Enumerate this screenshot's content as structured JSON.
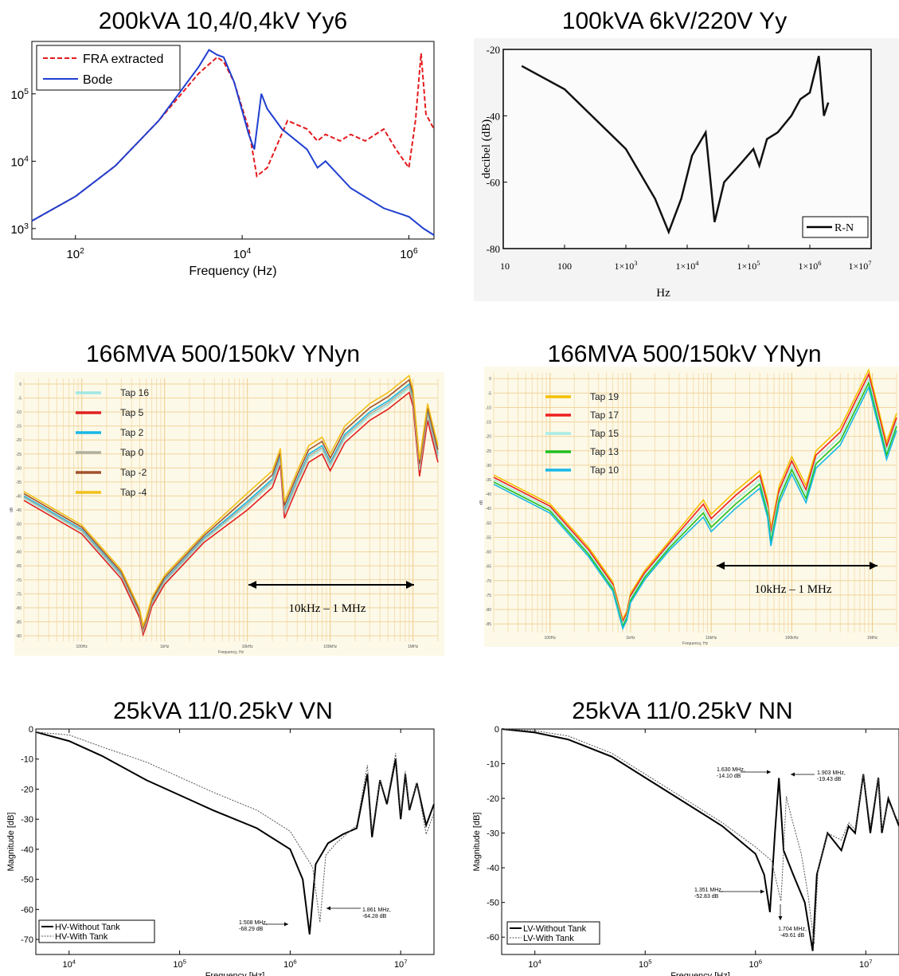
{
  "chart_data": [
    {
      "type": "line",
      "title": "200kVA 10,4/0,4kV Yy6",
      "xlabel": "Frequency (Hz)",
      "ylabel": "",
      "xscale": "log",
      "yscale": "log",
      "xlim": [
        30,
        2000000
      ],
      "ylim": [
        700,
        600000
      ],
      "xticks": [
        "10^2",
        "10^4",
        "10^6"
      ],
      "yticks": [
        "10^3",
        "10^4",
        "10^5"
      ],
      "legend": "top-left",
      "series": [
        {
          "name": "FRA extracted",
          "color": "#e41a1c",
          "style": "dashed",
          "x": [
            30,
            100,
            300,
            1000,
            3000,
            5000,
            6000,
            8000,
            12000,
            15000,
            20000,
            35000,
            60000,
            80000,
            100000,
            150000,
            200000,
            300000,
            500000,
            700000,
            1000000,
            1200000,
            1400000,
            1600000,
            2000000
          ],
          "y": [
            1300,
            3000,
            8500,
            40000,
            200000,
            350000,
            300000,
            150000,
            30000,
            6000,
            8000,
            40000,
            30000,
            20000,
            25000,
            20000,
            25000,
            20000,
            30000,
            15000,
            8000,
            40000,
            400000,
            50000,
            30000
          ]
        },
        {
          "name": "Bode",
          "color": "#1f3fd0",
          "style": "solid",
          "x": [
            30,
            100,
            300,
            1000,
            3000,
            4000,
            5000,
            6000,
            8000,
            12000,
            14000,
            17000,
            20000,
            30000,
            60000,
            80000,
            100000,
            200000,
            500000,
            1000000,
            1500000,
            2000000
          ],
          "y": [
            1300,
            3000,
            8500,
            40000,
            250000,
            450000,
            380000,
            350000,
            150000,
            25000,
            15000,
            100000,
            60000,
            30000,
            15000,
            8000,
            10000,
            4000,
            2000,
            1500,
            1000,
            800
          ]
        }
      ]
    },
    {
      "type": "line",
      "title": "100kVA 6kV/220V Yy",
      "xlabel": "Hz",
      "ylabel": "decibel (dB)",
      "xscale": "log",
      "xlim": [
        10,
        10000000
      ],
      "ylim": [
        -80,
        -20
      ],
      "xticks": [
        "10",
        "100",
        "1×10³",
        "1×10⁴",
        "1×10⁵",
        "1×10⁶",
        "1×10⁷"
      ],
      "yticks": [
        "-20",
        "-40",
        "-60",
        "-80"
      ],
      "legend": "bottom-right",
      "series": [
        {
          "name": "R-N",
          "color": "#111111",
          "x": [
            20,
            100,
            1000,
            3000,
            5000,
            8000,
            12000,
            20000,
            28000,
            40000,
            70000,
            120000,
            150000,
            200000,
            300000,
            500000,
            700000,
            1000000,
            1400000,
            1700000,
            2000000
          ],
          "y": [
            -25,
            -32,
            -50,
            -65,
            -75,
            -65,
            -52,
            -45,
            -72,
            -60,
            -55,
            -50,
            -55,
            -47,
            -45,
            -40,
            -35,
            -33,
            -22,
            -40,
            -36
          ]
        }
      ]
    },
    {
      "type": "line",
      "title": "166MVA 500/150kV YNyn",
      "annotation": "10kHz – 1 MHz",
      "xscale": "log",
      "ylabel": "dB",
      "xlabel": "Frequency, Hz",
      "xticks": [
        "100Hz",
        "1kHz",
        "10kHz",
        "100kHz",
        "1MHz"
      ],
      "yticks": [
        "0",
        "-5",
        "-10",
        "-15",
        "-20",
        "-25",
        "-30",
        "-35",
        "-40",
        "-45",
        "-50",
        "-55",
        "-60",
        "-65",
        "-70",
        "-75",
        "-80",
        "-85",
        "-90"
      ],
      "xlim": [
        20,
        2000000
      ],
      "ylim": [
        -92,
        2
      ],
      "legend": "top-left",
      "series_base": {
        "x": [
          20,
          100,
          300,
          500,
          550,
          600,
          700,
          1000,
          3000,
          10000,
          20000,
          25000,
          28000,
          40000,
          55000,
          80000,
          100000,
          150000,
          300000,
          500000,
          900000,
          1000000,
          1200000,
          1500000,
          2000000
        ],
        "y": [
          -40,
          -52,
          -68,
          -82,
          -88,
          -85,
          -78,
          -70,
          -55,
          -42,
          -34,
          -26,
          -45,
          -34,
          -25,
          -22,
          -28,
          -18,
          -10,
          -6,
          0,
          -5,
          -30,
          -10,
          -25
        ]
      },
      "series": [
        {
          "name": "Tap 16",
          "color": "#9fe8e2",
          "offset": -1.0
        },
        {
          "name": "Tap 5",
          "color": "#e02020",
          "offset": -2.0
        },
        {
          "name": "Tap 2",
          "color": "#18b8e6",
          "offset": 0.0
        },
        {
          "name": "Tap 0",
          "color": "#b0b0a0",
          "offset": -0.5
        },
        {
          "name": "Tap -2",
          "color": "#a0522d",
          "offset": 1.0
        },
        {
          "name": "Tap -4",
          "color": "#f2c01a",
          "offset": 2.0
        }
      ]
    },
    {
      "type": "line",
      "title": "166MVA 500/150kV YNyn",
      "annotation": "10kHz – 1 MHz",
      "xscale": "log",
      "ylabel": "dB",
      "xlabel": "Frequency, Hz",
      "xticks": [
        "100Hz",
        "1kHz",
        "10kHz",
        "100kHz",
        "1MHz"
      ],
      "yticks": [
        "0",
        "-5",
        "-10",
        "-15",
        "-20",
        "-25",
        "-30",
        "-35",
        "-40",
        "-45",
        "-50",
        "-55",
        "-60",
        "-65",
        "-70",
        "-75",
        "-80",
        "-85"
      ],
      "xlim": [
        20,
        2000000
      ],
      "ylim": [
        -88,
        2
      ],
      "legend": "top-left",
      "series_base": {
        "x": [
          20,
          100,
          300,
          600,
          800,
          900,
          1000,
          1500,
          3000,
          8000,
          10000,
          20000,
          40000,
          50000,
          55000,
          70000,
          100000,
          150000,
          200000,
          400000,
          600000,
          900000,
          1000000,
          1500000,
          2000000
        ],
        "y": [
          -35,
          -45,
          -60,
          -72,
          -85,
          -82,
          -76,
          -68,
          -58,
          -45,
          -50,
          -42,
          -35,
          -45,
          -55,
          -40,
          -30,
          -40,
          -28,
          -20,
          -10,
          0,
          -5,
          -25,
          -15
        ]
      },
      "series": [
        {
          "name": "Tap 19",
          "color": "#f5c000",
          "offset": 2.0
        },
        {
          "name": "Tap 17",
          "color": "#ee2020",
          "offset": 1.0
        },
        {
          "name": "Tap 15",
          "color": "#a8ece6",
          "offset": 0.0
        },
        {
          "name": "Tap 13",
          "color": "#22c022",
          "offset": -1.0
        },
        {
          "name": "Tap 10",
          "color": "#18b8e6",
          "offset": -2.0
        }
      ]
    },
    {
      "type": "line",
      "title": "25kVA 11/0.25kV VN",
      "xlabel": "Frequency [Hz]",
      "ylabel": "Magnitude [dB]",
      "xscale": "log",
      "xlim": [
        5000,
        20000000
      ],
      "ylim": [
        -75,
        0
      ],
      "xticks": [
        "10^4",
        "10^5",
        "10^6",
        "10^7"
      ],
      "yticks": [
        "0",
        "-10",
        "-20",
        "-30",
        "-40",
        "-50",
        "-60",
        "-70"
      ],
      "legend": "bottom-left",
      "annotations": [
        {
          "text": [
            "1.508 MHz,",
            "-68.29 dB"
          ]
        },
        {
          "text": [
            "1.861 MHz,",
            "-64.28 dB"
          ]
        }
      ],
      "series": [
        {
          "name": "HV-Without Tank",
          "color": "#000000",
          "x": [
            5000,
            10000,
            20000,
            50000,
            100000,
            200000,
            500000,
            1000000,
            1300000,
            1500000,
            1700000,
            2200000,
            3000000,
            4000000,
            5000000,
            5500000,
            6500000,
            7500000,
            9000000,
            10000000,
            11000000,
            12000000,
            14000000,
            17000000,
            20000000
          ],
          "y": [
            -1,
            -4,
            -9,
            -17,
            -22,
            -27,
            -33,
            -40,
            -50,
            -68.3,
            -45,
            -38,
            -35,
            -33,
            -15,
            -36,
            -17,
            -25,
            -10,
            -30,
            -15,
            -27,
            -18,
            -32,
            -25
          ]
        },
        {
          "name": "HV-With Tank",
          "color": "#555555",
          "style": "dotted",
          "x": [
            5000,
            10000,
            20000,
            50000,
            100000,
            200000,
            500000,
            1000000,
            1600000,
            1861000,
            2100000,
            2600000,
            3000000,
            4000000,
            5000000,
            5500000,
            6500000,
            7500000,
            9000000,
            10000000,
            11000000,
            12000000,
            14000000,
            17000000,
            20000000
          ],
          "y": [
            -1,
            -2,
            -6,
            -11,
            -16,
            -21,
            -27,
            -34,
            -46,
            -64.3,
            -42,
            -38,
            -36,
            -32,
            -12,
            -34,
            -17,
            -24,
            -8,
            -28,
            -14,
            -26,
            -18,
            -35,
            -28
          ]
        }
      ]
    },
    {
      "type": "line",
      "title": "25kVA 11/0.25kV NN",
      "xlabel": "Frequency [Hz]",
      "ylabel": "Magnitude [dB]",
      "xscale": "log",
      "xlim": [
        5000,
        20000000
      ],
      "ylim": [
        -65,
        0
      ],
      "xticks": [
        "10^4",
        "10^5",
        "10^6",
        "10^7"
      ],
      "yticks": [
        "0",
        "-10",
        "-20",
        "-30",
        "-40",
        "-50",
        "-60"
      ],
      "legend": "bottom-left",
      "annotations": [
        {
          "text": [
            "1.630 MHz,",
            "-14.10 dB"
          ]
        },
        {
          "text": [
            "1.903 MHz,",
            "-19.43 dB"
          ]
        },
        {
          "text": [
            "1.351 MHz,",
            "-52.83 dB"
          ]
        },
        {
          "text": [
            "1.704 MHz,",
            "-49.61 dB"
          ]
        }
      ],
      "series": [
        {
          "name": "LV-Without Tank",
          "color": "#000000",
          "x": [
            5000,
            10000,
            20000,
            50000,
            100000,
            200000,
            500000,
            1000000,
            1200000,
            1351000,
            1500000,
            1630000,
            1800000,
            2200000,
            2800000,
            3300000,
            3600000,
            4500000,
            6000000,
            7000000,
            8000000,
            9500000,
            11000000,
            13000000,
            14000000,
            16000000,
            20000000
          ],
          "y": [
            0,
            -1,
            -3,
            -8,
            -14,
            -20,
            -28,
            -36,
            -42,
            -52.8,
            -30,
            -14.1,
            -35,
            -42,
            -50,
            -64,
            -42,
            -30,
            -35,
            -28,
            -30,
            -13,
            -30,
            -14,
            -30,
            -20,
            -28
          ]
        },
        {
          "name": "LV-With Tank",
          "color": "#555555",
          "style": "dotted",
          "x": [
            5000,
            10000,
            20000,
            50000,
            100000,
            200000,
            500000,
            1000000,
            1400000,
            1704000,
            1800000,
            1903000,
            2100000,
            2600000,
            3000000,
            3400000,
            3700000,
            4500000,
            6000000,
            7000000,
            8000000,
            9500000,
            11000000,
            13000000,
            14000000,
            16000000,
            20000000
          ],
          "y": [
            0,
            -0.5,
            -2,
            -7,
            -13,
            -19,
            -27,
            -34,
            -38,
            -49.6,
            -35,
            -19.4,
            -25,
            -36,
            -48,
            -62,
            -40,
            -30,
            -32,
            -27,
            -29,
            -13,
            -28,
            -14,
            -29,
            -21,
            -27
          ]
        }
      ]
    }
  ]
}
